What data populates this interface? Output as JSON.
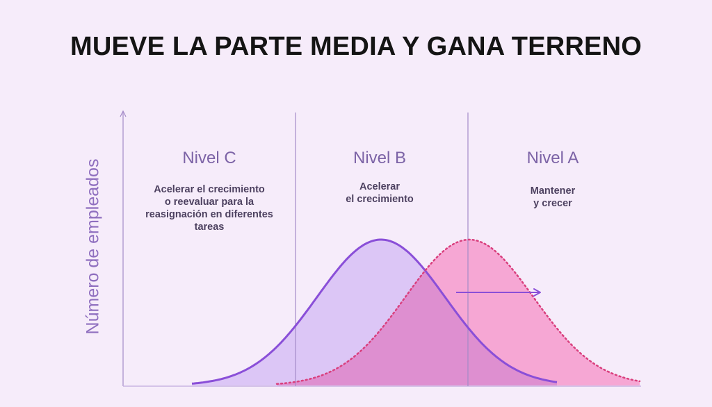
{
  "title": "MUEVE LA PARTE MEDIA Y GANA TERRENO",
  "y_axis_label": "Número de empleados",
  "levels": [
    {
      "title": "Nivel C",
      "description": [
        "Acelerar el crecimiento",
        "o reevaluar para la",
        "reasignación en diferentes",
        "tareas"
      ]
    },
    {
      "title": "Nivel B",
      "description": [
        "Acelerar",
        "el crecimiento"
      ]
    },
    {
      "title": "Nivel A",
      "description": [
        "Mantener",
        "y crecer"
      ]
    }
  ],
  "colors": {
    "background": "#f6ecfa",
    "current_curve_fill": "#dcc6f6",
    "current_curve_stroke": "#8a4fd8",
    "shifted_curve_fill": "#f5a3d2",
    "shifted_curve_stroke": "#d9407e",
    "overlap_fill": "#de8fd0",
    "divider": "#a48ac8",
    "arrow": "#8a4fd8"
  },
  "curves": [
    {
      "name": "current",
      "style": "solid",
      "peak_level": "Nivel B"
    },
    {
      "name": "shifted",
      "style": "dotted",
      "peak_level": "Nivel A"
    }
  ],
  "arrow": {
    "direction": "right"
  }
}
